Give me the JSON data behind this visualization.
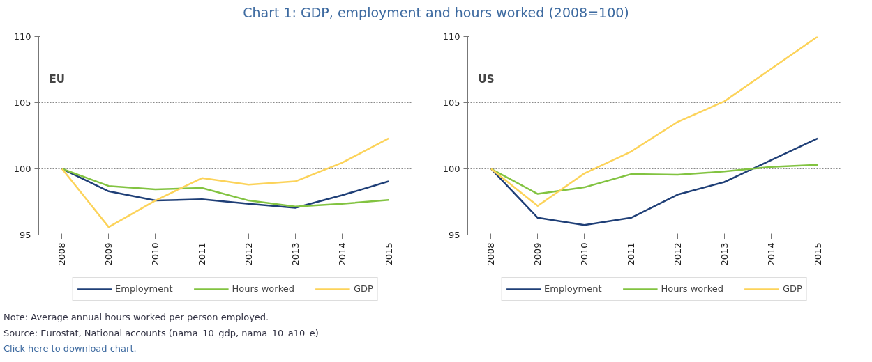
{
  "chart_data": [
    {
      "type": "line",
      "title": "EU",
      "categories": [
        "2008",
        "2009",
        "2010",
        "2011",
        "2012",
        "2013",
        "2014",
        "2015"
      ],
      "series": [
        {
          "name": "Employment",
          "color": "#1f3f77",
          "values": [
            100,
            98.3,
            97.6,
            97.7,
            97.35,
            97.05,
            98.0,
            99.05
          ]
        },
        {
          "name": "Hours worked",
          "color": "#82c341",
          "values": [
            100,
            98.7,
            98.45,
            98.55,
            97.6,
            97.15,
            97.35,
            97.65
          ]
        },
        {
          "name": "GDP",
          "color": "#fcd35a",
          "values": [
            100,
            95.6,
            97.6,
            99.3,
            98.8,
            99.05,
            100.45,
            102.3
          ]
        }
      ],
      "ylim": [
        95,
        110
      ],
      "yticks": [
        95,
        100,
        105,
        110
      ],
      "grid": "y",
      "legend": "bottom",
      "marker": "none",
      "line_style": "solid",
      "annotations": [
        "Chart 1: GDP, employment and hours worked (2008=100)",
        "Note: Average annual hours worked per person employed.",
        "Source: Eurostat, National accounts (nama_10_gdp, nama_10_a10_e)",
        "Click here to download chart."
      ]
    },
    {
      "type": "line",
      "title": "US",
      "categories": [
        "2008",
        "2009",
        "2010",
        "2011",
        "2012",
        "2013",
        "2014",
        "2015"
      ],
      "series": [
        {
          "name": "Employment",
          "color": "#1f3f77",
          "values": [
            100,
            96.3,
            95.75,
            96.3,
            98.05,
            99.0,
            100.65,
            102.3
          ]
        },
        {
          "name": "Hours worked",
          "color": "#82c341",
          "values": [
            100,
            98.1,
            98.6,
            99.6,
            99.55,
            99.8,
            100.15,
            100.3
          ]
        },
        {
          "name": "GDP",
          "color": "#fcd35a",
          "values": [
            100,
            97.2,
            99.65,
            101.3,
            103.55,
            105.1,
            107.55,
            110
          ]
        }
      ],
      "ylim": [
        95,
        110
      ],
      "yticks": [
        95,
        100,
        105,
        110
      ],
      "grid": "y",
      "legend": "bottom",
      "marker": "none",
      "line_style": "solid"
    }
  ]
}
